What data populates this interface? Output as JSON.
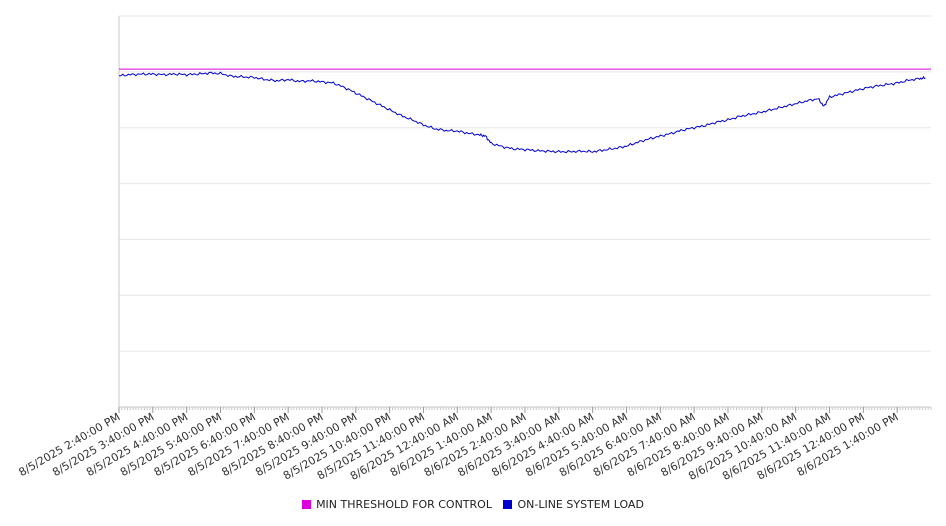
{
  "chart_data": {
    "type": "line",
    "title": "",
    "xlabel": "",
    "ylabel": "",
    "grid": true,
    "legend_position": "bottom",
    "y_axis_labels_shown": false,
    "x_tick_labels": [
      "8/5/2025 2:40:00 PM",
      "8/5/2025 3:40:00 PM",
      "8/5/2025 4:40:00 PM",
      "8/5/2025 5:40:00 PM",
      "8/5/2025 6:40:00 PM",
      "8/5/2025 7:40:00 PM",
      "8/5/2025 8:40:00 PM",
      "8/5/2025 9:40:00 PM",
      "8/5/2025 10:40:00 PM",
      "8/5/2025 11:40:00 PM",
      "8/6/2025 12:40:00 AM",
      "8/6/2025 1:40:00 AM",
      "8/6/2025 2:40:00 AM",
      "8/6/2025 3:40:00 AM",
      "8/6/2025 4:40:00 AM",
      "8/6/2025 5:40:00 AM",
      "8/6/2025 6:40:00 AM",
      "8/6/2025 7:40:00 AM",
      "8/6/2025 8:40:00 AM",
      "8/6/2025 9:40:00 AM",
      "8/6/2025 10:40:00 AM",
      "8/6/2025 11:40:00 AM",
      "8/6/2025 12:40:00 PM",
      "8/6/2025 1:40:00 PM"
    ],
    "y_range": [
      0,
      7
    ],
    "series": [
      {
        "name": "MIN THRESHOLD FOR CONTROL",
        "color": "#dd00dd",
        "constant": 6.05
      },
      {
        "name": "ON-LINE SYSTEM LOAD",
        "color": "#0000cc",
        "points": [
          [
            "8/5/2025 2:40:00 PM",
            5.93
          ],
          [
            "8/5/2025 3:00:00 PM",
            5.95
          ],
          [
            "8/5/2025 3:20:00 PM",
            5.96
          ],
          [
            "8/5/2025 3:40:00 PM",
            5.96
          ],
          [
            "8/5/2025 4:00:00 PM",
            5.95
          ],
          [
            "8/5/2025 4:20:00 PM",
            5.96
          ],
          [
            "8/5/2025 4:40:00 PM",
            5.95
          ],
          [
            "8/5/2025 5:00:00 PM",
            5.96
          ],
          [
            "8/5/2025 5:20:00 PM",
            5.98
          ],
          [
            "8/5/2025 5:40:00 PM",
            5.97
          ],
          [
            "8/5/2025 6:00:00 PM",
            5.92
          ],
          [
            "8/5/2025 6:20:00 PM",
            5.91
          ],
          [
            "8/5/2025 6:40:00 PM",
            5.9
          ],
          [
            "8/5/2025 7:00:00 PM",
            5.86
          ],
          [
            "8/5/2025 7:20:00 PM",
            5.84
          ],
          [
            "8/5/2025 7:40:00 PM",
            5.86
          ],
          [
            "8/5/2025 8:00:00 PM",
            5.83
          ],
          [
            "8/5/2025 8:20:00 PM",
            5.84
          ],
          [
            "8/5/2025 8:40:00 PM",
            5.82
          ],
          [
            "8/5/2025 9:00:00 PM",
            5.8
          ],
          [
            "8/5/2025 9:20:00 PM",
            5.72
          ],
          [
            "8/5/2025 9:40:00 PM",
            5.62
          ],
          [
            "8/5/2025 10:00:00 PM",
            5.52
          ],
          [
            "8/5/2025 10:20:00 PM",
            5.42
          ],
          [
            "8/5/2025 10:40:00 PM",
            5.32
          ],
          [
            "8/5/2025 11:00:00 PM",
            5.22
          ],
          [
            "8/5/2025 11:20:00 PM",
            5.14
          ],
          [
            "8/5/2025 11:40:00 PM",
            5.05
          ],
          [
            "8/6/2025 12:00:00 AM",
            4.98
          ],
          [
            "8/6/2025 12:20:00 AM",
            4.95
          ],
          [
            "8/6/2025 12:40:00 AM",
            4.94
          ],
          [
            "8/6/2025 1:00:00 AM",
            4.9
          ],
          [
            "8/6/2025 1:20:00 AM",
            4.87
          ],
          [
            "8/6/2025 1:30:00 AM",
            4.85
          ],
          [
            "8/6/2025 1:40:00 AM",
            4.72
          ],
          [
            "8/6/2025 2:00:00 AM",
            4.66
          ],
          [
            "8/6/2025 2:20:00 AM",
            4.62
          ],
          [
            "8/6/2025 2:40:00 AM",
            4.61
          ],
          [
            "8/6/2025 3:00:00 AM",
            4.59
          ],
          [
            "8/6/2025 3:20:00 AM",
            4.58
          ],
          [
            "8/6/2025 3:40:00 AM",
            4.57
          ],
          [
            "8/6/2025 4:00:00 AM",
            4.57
          ],
          [
            "8/6/2025 4:20:00 AM",
            4.58
          ],
          [
            "8/6/2025 4:40:00 AM",
            4.57
          ],
          [
            "8/6/2025 5:00:00 AM",
            4.6
          ],
          [
            "8/6/2025 5:20:00 AM",
            4.63
          ],
          [
            "8/6/2025 5:40:00 AM",
            4.67
          ],
          [
            "8/6/2025 6:00:00 AM",
            4.74
          ],
          [
            "8/6/2025 6:20:00 AM",
            4.8
          ],
          [
            "8/6/2025 6:40:00 AM",
            4.85
          ],
          [
            "8/6/2025 7:00:00 AM",
            4.9
          ],
          [
            "8/6/2025 7:20:00 AM",
            4.96
          ],
          [
            "8/6/2025 7:40:00 AM",
            5.0
          ],
          [
            "8/6/2025 8:00:00 AM",
            5.04
          ],
          [
            "8/6/2025 8:20:00 AM",
            5.1
          ],
          [
            "8/6/2025 8:40:00 AM",
            5.14
          ],
          [
            "8/6/2025 9:00:00 AM",
            5.2
          ],
          [
            "8/6/2025 9:20:00 AM",
            5.24
          ],
          [
            "8/6/2025 9:40:00 AM",
            5.28
          ],
          [
            "8/6/2025 10:00:00 AM",
            5.33
          ],
          [
            "8/6/2025 10:20:00 AM",
            5.38
          ],
          [
            "8/6/2025 10:40:00 AM",
            5.43
          ],
          [
            "8/6/2025 11:00:00 AM",
            5.48
          ],
          [
            "8/6/2025 11:20:00 AM",
            5.52
          ],
          [
            "8/6/2025 11:30:00 AM",
            5.38
          ],
          [
            "8/6/2025 11:40:00 AM",
            5.55
          ],
          [
            "8/6/2025 12:00:00 PM",
            5.6
          ],
          [
            "8/6/2025 12:20:00 PM",
            5.65
          ],
          [
            "8/6/2025 12:40:00 PM",
            5.7
          ],
          [
            "8/6/2025 1:00:00 PM",
            5.74
          ],
          [
            "8/6/2025 1:20:00 PM",
            5.77
          ],
          [
            "8/6/2025 1:40:00 PM",
            5.8
          ],
          [
            "8/6/2025 2:00:00 PM",
            5.85
          ],
          [
            "8/6/2025 2:20:00 PM",
            5.88
          ],
          [
            "8/6/2025 2:30:00 PM",
            5.89
          ]
        ]
      }
    ]
  }
}
